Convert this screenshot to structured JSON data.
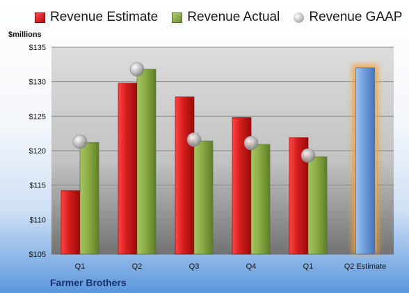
{
  "chart_data": {
    "type": "bar",
    "categories": [
      "Q1",
      "Q2",
      "Q3",
      "Q4",
      "Q1",
      "Q2 Estimate"
    ],
    "series": [
      {
        "name": "Revenue Estimate",
        "values": [
          114.2,
          129.8,
          127.8,
          124.8,
          121.9,
          null
        ]
      },
      {
        "name": "Revenue Actual",
        "values": [
          121.2,
          131.8,
          121.4,
          120.9,
          119.1,
          null
        ]
      },
      {
        "name": "Revenue GAAP",
        "values": [
          121.3,
          131.8,
          121.6,
          121.1,
          119.3,
          null
        ]
      }
    ],
    "forecast": {
      "category": "Q2 Estimate",
      "value": 132.0
    },
    "ylabel": "$millions",
    "ylim": [
      105,
      135
    ],
    "yticks": [
      "$105",
      "$110",
      "$115",
      "$120",
      "$125",
      "$130",
      "$135"
    ],
    "legend_position": "top",
    "grid": true
  },
  "legend": {
    "estimate": "Revenue Estimate",
    "actual": "Revenue Actual",
    "gaap": "Revenue GAAP"
  },
  "footer": {
    "company": "Farmer Brothers"
  },
  "colors": {
    "estimate": "#d41c1c",
    "actual": "#8aab45",
    "forecast": "#6f9fdc",
    "forecast_glow": "#f4a13a"
  }
}
